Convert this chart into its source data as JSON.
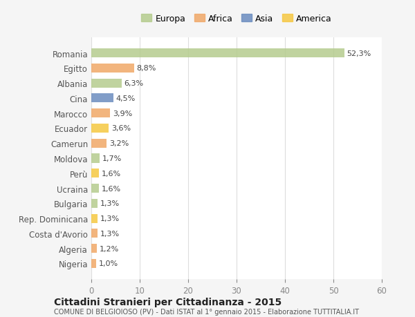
{
  "countries": [
    "Romania",
    "Egitto",
    "Albania",
    "Cina",
    "Marocco",
    "Ecuador",
    "Camerun",
    "Moldova",
    "Perù",
    "Ucraina",
    "Bulgaria",
    "Rep. Dominicana",
    "Costa d'Avorio",
    "Algeria",
    "Nigeria"
  ],
  "values": [
    52.3,
    8.8,
    6.3,
    4.5,
    3.9,
    3.6,
    3.2,
    1.7,
    1.6,
    1.6,
    1.3,
    1.3,
    1.3,
    1.2,
    1.0
  ],
  "labels": [
    "52,3%",
    "8,8%",
    "6,3%",
    "4,5%",
    "3,9%",
    "3,6%",
    "3,2%",
    "1,7%",
    "1,6%",
    "1,6%",
    "1,3%",
    "1,3%",
    "1,3%",
    "1,2%",
    "1,0%"
  ],
  "continents": [
    "Europa",
    "Africa",
    "Europa",
    "Asia",
    "Africa",
    "America",
    "Africa",
    "Europa",
    "America",
    "Europa",
    "Europa",
    "America",
    "Africa",
    "Africa",
    "Africa"
  ],
  "continent_colors": {
    "Europa": "#b5cc8e",
    "Africa": "#f0a868",
    "Asia": "#6b8cbf",
    "America": "#f5c842"
  },
  "legend_order": [
    "Europa",
    "Africa",
    "Asia",
    "America"
  ],
  "legend_colors": [
    "#b5cc8e",
    "#f0a868",
    "#6b8cbf",
    "#f5c842"
  ],
  "xlim": [
    0,
    60
  ],
  "xticks": [
    0,
    10,
    20,
    30,
    40,
    50,
    60
  ],
  "title_main": "Cittadini Stranieri per Cittadinanza - 2015",
  "title_sub": "COMUNE DI BELGIOIOSO (PV) - Dati ISTAT al 1° gennaio 2015 - Elaborazione TUTTITALIA.IT",
  "background_color": "#f5f5f5",
  "plot_bg_color": "#ffffff",
  "grid_color": "#dddddd",
  "bar_height": 0.6
}
